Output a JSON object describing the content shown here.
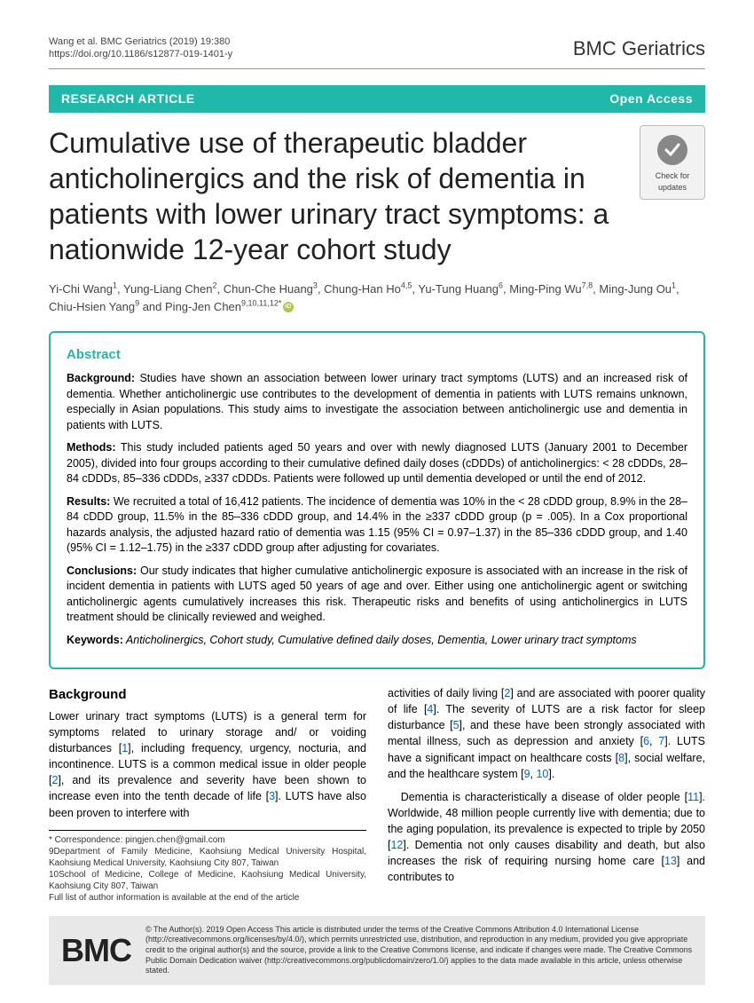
{
  "header": {
    "citation_line1": "Wang et al. BMC Geriatrics          (2019) 19:380",
    "citation_line2": "https://doi.org/10.1186/s12877-019-1401-y",
    "journal": "BMC Geriatrics"
  },
  "banner": {
    "left": "RESEARCH ARTICLE",
    "right": "Open Access"
  },
  "title": "Cumulative use of therapeutic bladder anticholinergics and the risk of dementia in patients with lower urinary tract symptoms: a nationwide 12-year cohort study",
  "check_updates": "Check for updates",
  "authors_html": "Yi-Chi Wang<sup>1</sup>, Yung-Liang Chen<sup>2</sup>, Chun-Che Huang<sup>3</sup>, Chung-Han Ho<sup>4,5</sup>, Yu-Tung Huang<sup>6</sup>, Ming-Ping Wu<sup>7,8</sup>, Ming-Jung Ou<sup>1</sup>, Chiu-Hsien Yang<sup>9</sup> and Ping-Jen Chen<sup>9,10,11,12*</sup>",
  "abstract": {
    "heading": "Abstract",
    "background_label": "Background:",
    "background": " Studies have shown an association between lower urinary tract symptoms (LUTS) and an increased risk of dementia. Whether anticholinergic use contributes to the development of dementia in patients with LUTS remains unknown, especially in Asian populations. This study aims to investigate the association between anticholinergic use and dementia in patients with LUTS.",
    "methods_label": "Methods:",
    "methods": " This study included patients aged 50 years and over with newly diagnosed LUTS (January 2001 to December 2005), divided into four groups according to their cumulative defined daily doses (cDDDs) of anticholinergics: < 28 cDDDs, 28–84 cDDDs, 85–336 cDDDs, ≥337 cDDDs. Patients were followed up until dementia developed or until the end of 2012.",
    "results_label": "Results:",
    "results": " We recruited a total of 16,412 patients. The incidence of dementia was 10% in the < 28 cDDD group, 8.9% in the 28–84 cDDD group, 11.5% in the 85–336 cDDD group, and 14.4% in the ≥337 cDDD group (p = .005). In a Cox proportional hazards analysis, the adjusted hazard ratio of dementia was 1.15 (95% CI = 0.97–1.37) in the 85–336 cDDD group, and 1.40 (95% CI = 1.12–1.75) in the ≥337 cDDD group after adjusting for covariates.",
    "conclusions_label": "Conclusions:",
    "conclusions": " Our study indicates that higher cumulative anticholinergic exposure is associated with an increase in the risk of incident dementia in patients with LUTS aged 50 years of age and over. Either using one anticholinergic agent or switching anticholinergic agents cumulatively increases this risk. Therapeutic risks and benefits of using anticholinergics in LUTS treatment should be clinically reviewed and weighed.",
    "keywords_label": "Keywords:",
    "keywords": " Anticholinergics, Cohort study, Cumulative defined daily doses, Dementia, Lower urinary tract symptoms"
  },
  "body": {
    "heading": "Background",
    "col1_p1a": "Lower urinary tract symptoms (LUTS) is a general term for symptoms related to urinary storage and/ or voiding disturbances [",
    "col1_p1b": "], including frequency, urgency, nocturia, and incontinence. LUTS is a common medical issue in older people [",
    "col1_p1c": "], and its prevalence and severity have been shown to increase even into the tenth decade of life [",
    "col1_p1d": "]. LUTS have also been proven to interfere with",
    "col2_p1a": "activities of daily living [",
    "col2_p1b": "] and are associated with poorer quality of life [",
    "col2_p1c": "]. The severity of LUTS are a risk factor for sleep disturbance [",
    "col2_p1d": "], and these have been strongly associated with mental illness, such as depression and anxiety [",
    "col2_p1e": "]. LUTS have a significant impact on healthcare costs [",
    "col2_p1f": "], social welfare, and the healthcare system [",
    "col2_p1g": "].",
    "col2_p2a": "Dementia is characteristically a disease of older people [",
    "col2_p2b": "]. Worldwide, 48 million people currently live with dementia; due to the aging population, its prevalence is expected to triple by 2050 [",
    "col2_p2c": "]. Dementia not only causes disability and death, but also increases the risk of requiring nursing home care [",
    "col2_p2d": "] and contributes to"
  },
  "refs": {
    "r1": "1",
    "r2": "2",
    "r3": "3",
    "r4": "4",
    "r5": "5",
    "r6": "6",
    "r7": "7",
    "r8": "8",
    "r9": "9",
    "r10": "10",
    "r11": "11",
    "r12": "12",
    "r13": "13"
  },
  "footnote": {
    "l1": "* Correspondence: pingjen.chen@gmail.com",
    "l2": "9Department of Family Medicine, Kaohsiung Medical University Hospital, Kaohsiung Medical University, Kaohsiung City 807, Taiwan",
    "l3": "10School of Medicine, College of Medicine, Kaohsiung Medical University, Kaohsiung City 807, Taiwan",
    "l4": "Full list of author information is available at the end of the article"
  },
  "footer": {
    "logo": "BMC",
    "license": "© The Author(s). 2019 Open Access This article is distributed under the terms of the Creative Commons Attribution 4.0 International License (http://creativecommons.org/licenses/by/4.0/), which permits unrestricted use, distribution, and reproduction in any medium, provided you give appropriate credit to the original author(s) and the source, provide a link to the Creative Commons license, and indicate if changes were made. The Creative Commons Public Domain Dedication waiver (http://creativecommons.org/publicdomain/zero/1.0/) applies to the data made available in this article, unless otherwise stated."
  },
  "colors": {
    "accent": "#1fb8a9",
    "link": "#0066cc",
    "orcid": "#a6ce39"
  }
}
